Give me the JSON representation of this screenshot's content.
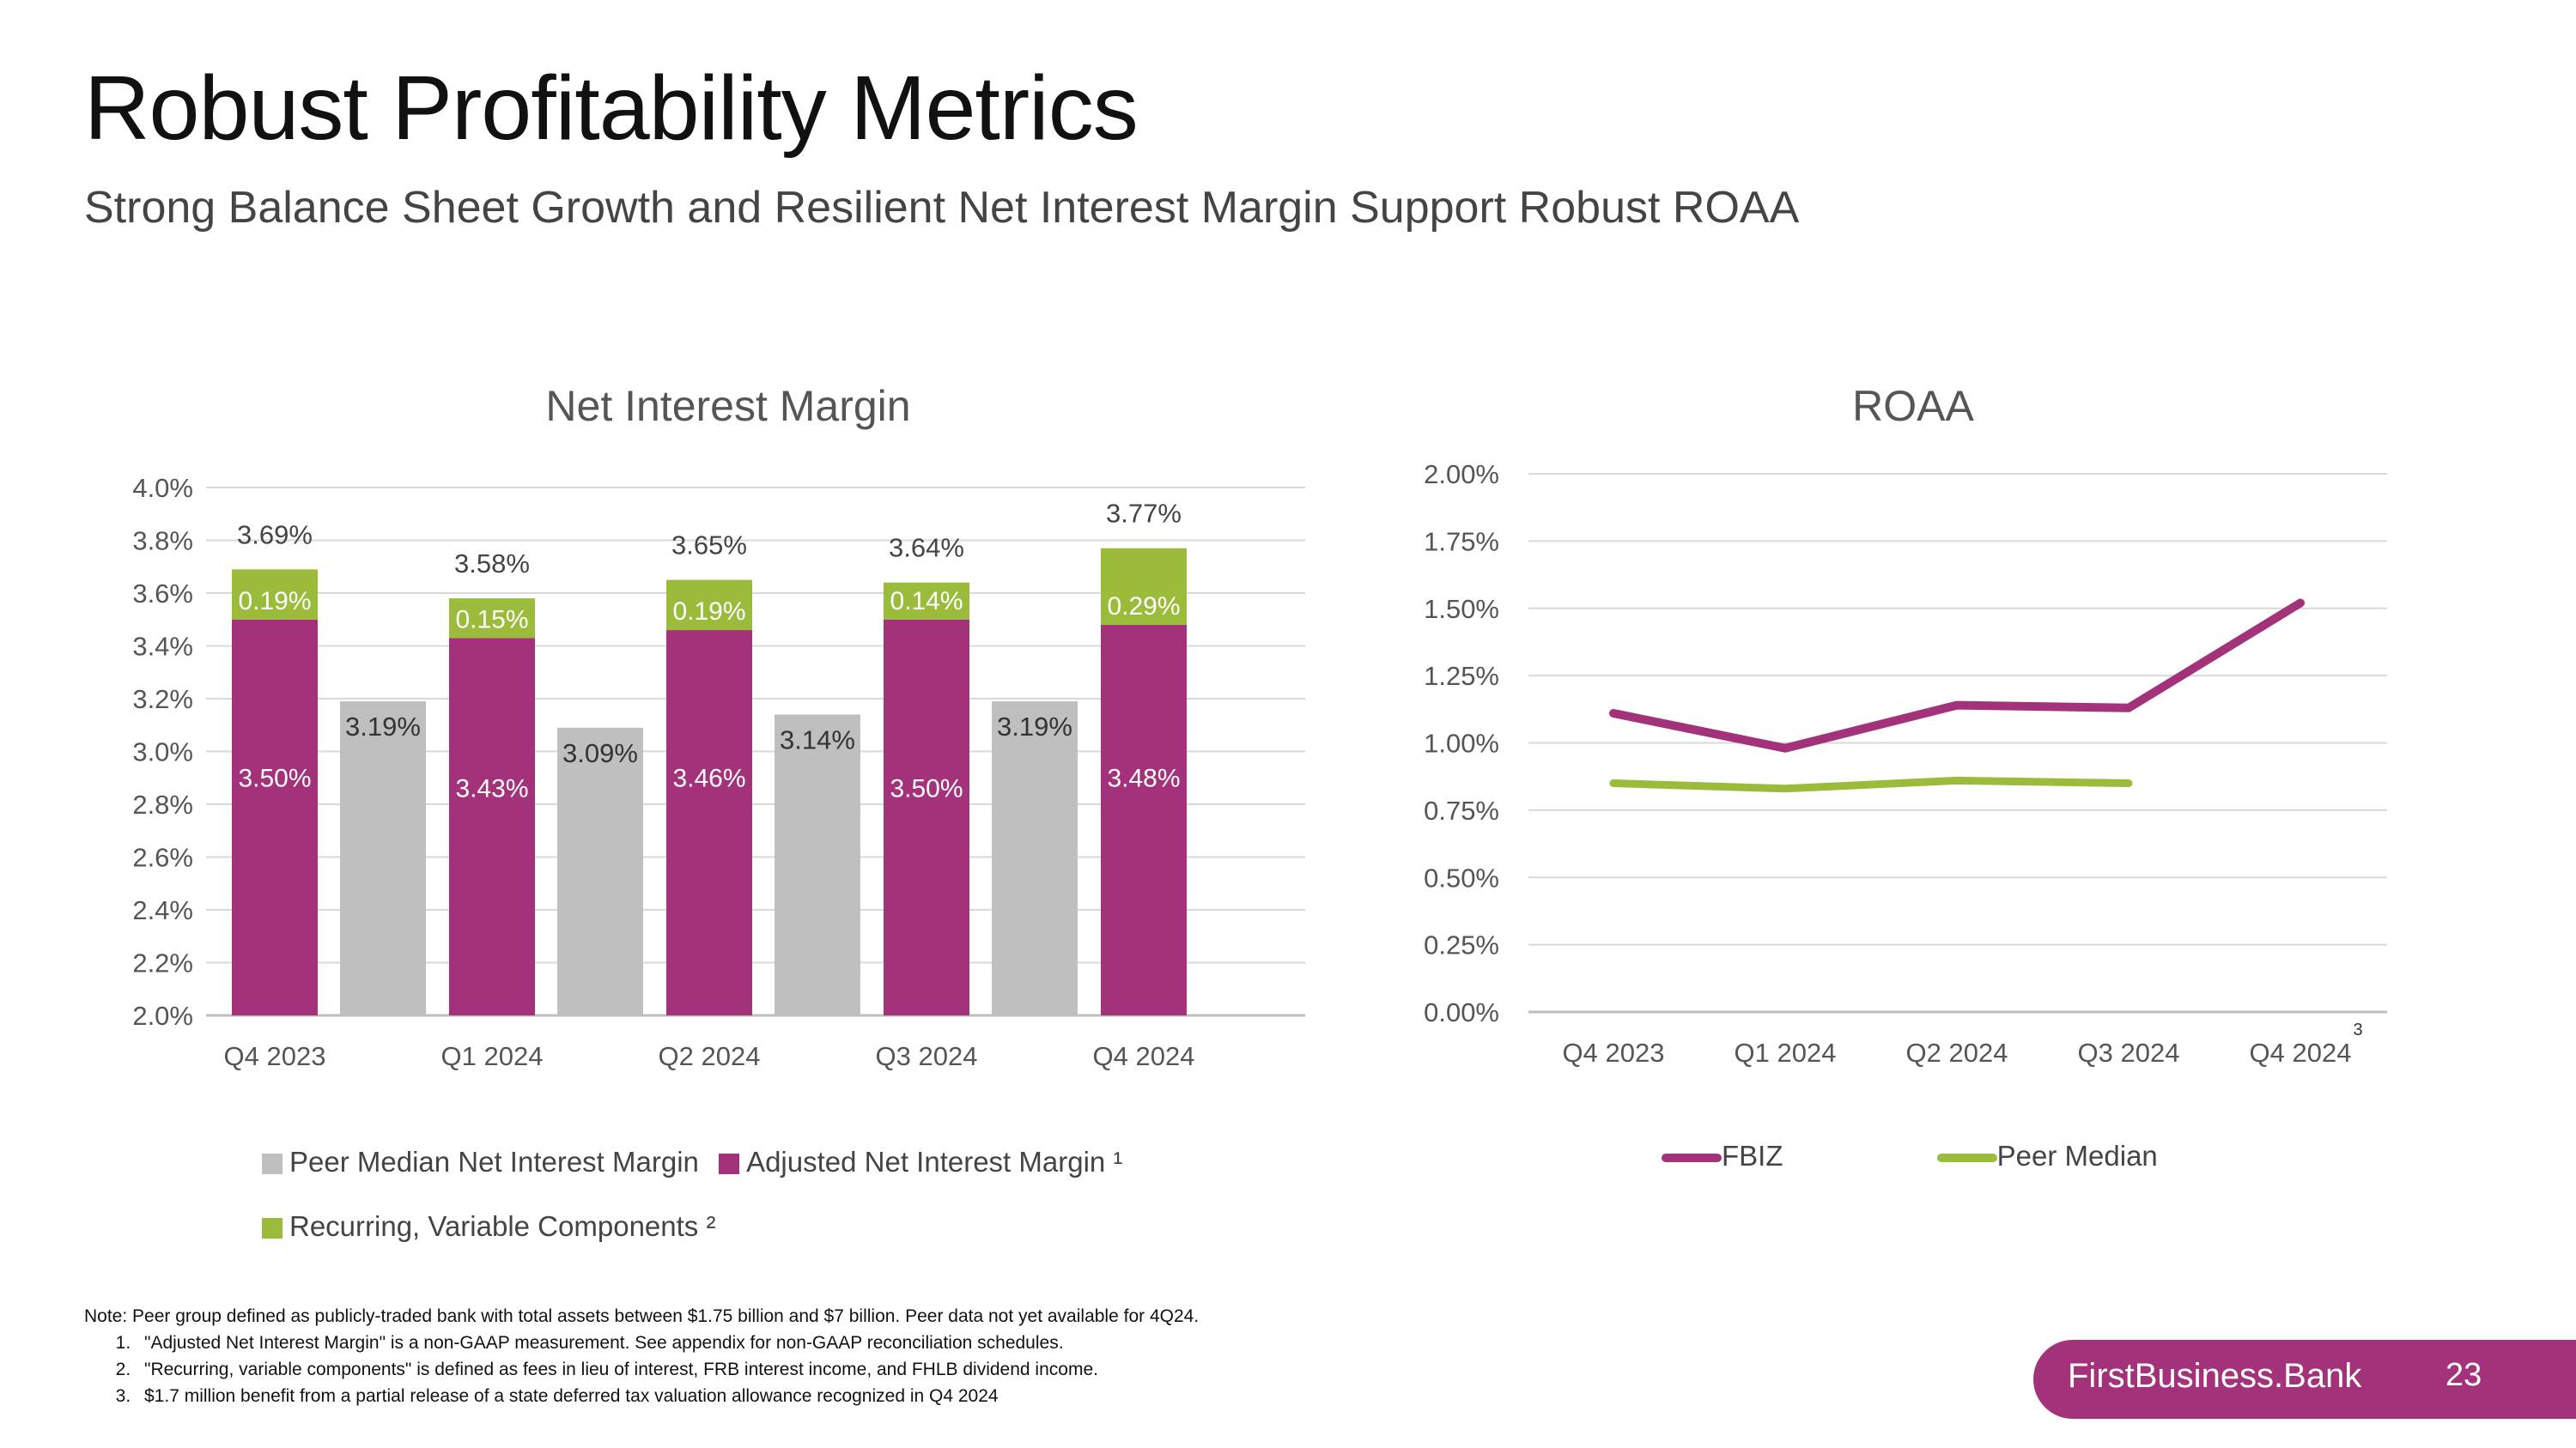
{
  "page": {
    "title": "Robust Profitability Metrics",
    "subtitle": "Strong Balance Sheet Growth and Resilient Net Interest Margin Support Robust ROAA",
    "brand": "FirstBusiness.Bank",
    "page_number": "23",
    "roaa_footnote_marker": "3"
  },
  "notes": {
    "intro": "Note: Peer group defined as publicly-traded bank with total assets between $1.75 billion and $7 billion. Peer data not yet available for 4Q24.",
    "items": [
      "\"Adjusted Net Interest Margin\" is a non-GAAP measurement. See appendix for non-GAAP reconciliation schedules.",
      "\"Recurring, variable components\" is defined as fees in lieu of interest, FRB interest income, and FHLB dividend income.",
      "$1.7 million benefit from a partial release of a state deferred tax valuation allowance recognized in Q4 2024"
    ]
  },
  "colors": {
    "fbiz": "#a3327b",
    "green": "#9bbb3b",
    "peer": "#bfbfbf",
    "brand_bg": "#a3327b"
  },
  "chart_data": [
    {
      "type": "bar",
      "title": "Net Interest Margin",
      "categories": [
        "Q4 2023",
        "Q1 2024",
        "Q2 2024",
        "Q3 2024",
        "Q4 2024"
      ],
      "ylim": [
        2.0,
        4.0
      ],
      "yticks": [
        "2.0%",
        "2.2%",
        "2.4%",
        "2.6%",
        "2.8%",
        "3.0%",
        "3.2%",
        "3.4%",
        "3.6%",
        "3.8%",
        "4.0%"
      ],
      "series": [
        {
          "name": "Adjusted Net Interest Margin ¹",
          "values": [
            3.5,
            3.43,
            3.46,
            3.5,
            3.48
          ],
          "labels": [
            "3.50%",
            "3.43%",
            "3.46%",
            "3.50%",
            "3.48%"
          ],
          "stack": "adj"
        },
        {
          "name": "Recurring, Variable Components ²",
          "values": [
            0.19,
            0.15,
            0.19,
            0.14,
            0.29
          ],
          "labels": [
            "0.19%",
            "0.15%",
            "0.19%",
            "0.14%",
            "0.29%"
          ],
          "stack": "adj"
        },
        {
          "name": "Peer Median Net Interest Margin",
          "values": [
            3.19,
            3.09,
            3.14,
            3.19,
            null
          ],
          "labels": [
            "3.19%",
            "3.09%",
            "3.14%",
            "3.19%",
            null
          ],
          "stack": "peer"
        }
      ],
      "totals": [
        "3.69%",
        "3.58%",
        "3.65%",
        "3.64%",
        "3.77%"
      ],
      "legend": [
        "Peer Median Net Interest Margin",
        "Adjusted Net Interest Margin ¹",
        "Recurring, Variable Components ²"
      ]
    },
    {
      "type": "line",
      "title": "ROAA",
      "categories": [
        "Q4 2023",
        "Q1 2024",
        "Q2 2024",
        "Q3 2024",
        "Q4 2024"
      ],
      "ylim": [
        0.0,
        2.0
      ],
      "yticks": [
        "0.00%",
        "0.25%",
        "0.50%",
        "0.75%",
        "1.00%",
        "1.25%",
        "1.50%",
        "1.75%",
        "2.00%"
      ],
      "series": [
        {
          "name": "FBIZ",
          "values": [
            1.11,
            0.98,
            1.14,
            1.13,
            1.52
          ]
        },
        {
          "name": "Peer Median",
          "values": [
            0.85,
            0.83,
            0.86,
            0.85,
            null
          ]
        }
      ]
    }
  ]
}
